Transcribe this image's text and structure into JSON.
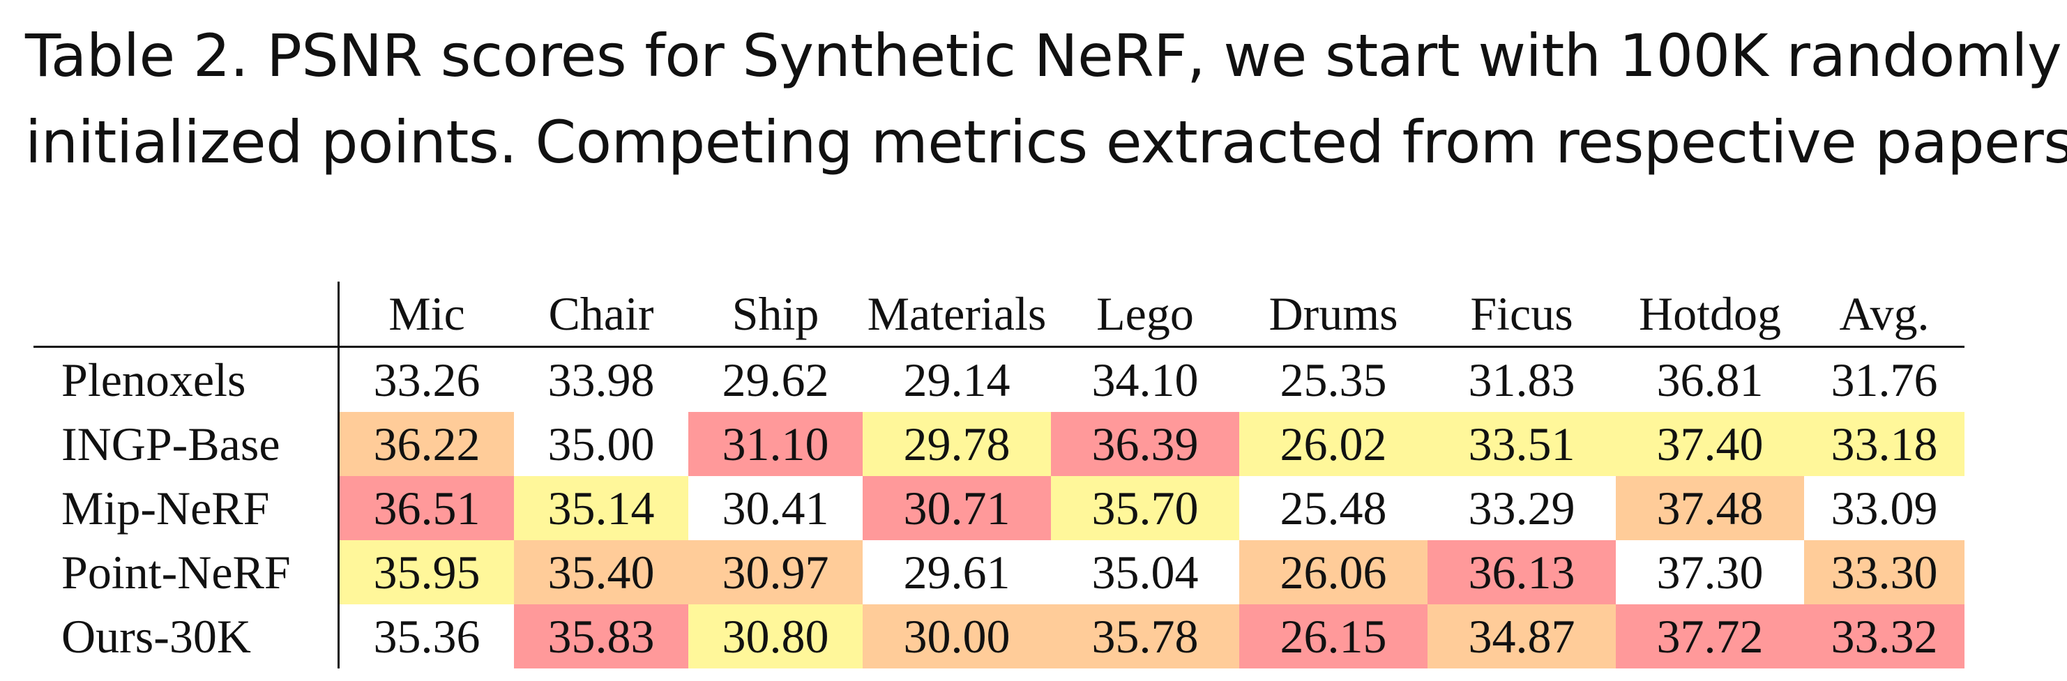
{
  "caption": {
    "line1": "Table 2.  PSNR scores for Synthetic NeRF, we start with 100K randomly",
    "line2": "initialized points. Competing metrics extracted from respective papers."
  },
  "colors": {
    "first": "#ff999a",
    "second": "#ffcc99",
    "third": "#fff79a"
  },
  "table": {
    "columns": [
      "Mic",
      "Chair",
      "Ship",
      "Materials",
      "Lego",
      "Drums",
      "Ficus",
      "Hotdog",
      "Avg."
    ],
    "rows": [
      {
        "method": "Plenoxels",
        "values": [
          "33.26",
          "33.98",
          "29.62",
          "29.14",
          "34.10",
          "25.35",
          "31.83",
          "36.81",
          "31.76"
        ],
        "ranks": [
          0,
          0,
          0,
          0,
          0,
          0,
          0,
          0,
          0
        ]
      },
      {
        "method": "INGP-Base",
        "values": [
          "36.22",
          "35.00",
          "31.10",
          "29.78",
          "36.39",
          "26.02",
          "33.51",
          "37.40",
          "33.18"
        ],
        "ranks": [
          2,
          0,
          1,
          3,
          1,
          3,
          3,
          3,
          3
        ]
      },
      {
        "method": "Mip-NeRF",
        "values": [
          "36.51",
          "35.14",
          "30.41",
          "30.71",
          "35.70",
          "25.48",
          "33.29",
          "37.48",
          "33.09"
        ],
        "ranks": [
          1,
          3,
          0,
          1,
          3,
          0,
          0,
          2,
          0
        ]
      },
      {
        "method": "Point-NeRF",
        "values": [
          "35.95",
          "35.40",
          "30.97",
          "29.61",
          "35.04",
          "26.06",
          "36.13",
          "37.30",
          "33.30"
        ],
        "ranks": [
          3,
          2,
          2,
          0,
          0,
          2,
          1,
          0,
          2
        ]
      },
      {
        "method": "Ours-30K",
        "values": [
          "35.36",
          "35.83",
          "30.80",
          "30.00",
          "35.78",
          "26.15",
          "34.87",
          "37.72",
          "33.32"
        ],
        "ranks": [
          0,
          1,
          3,
          2,
          2,
          1,
          2,
          1,
          1
        ]
      }
    ]
  }
}
